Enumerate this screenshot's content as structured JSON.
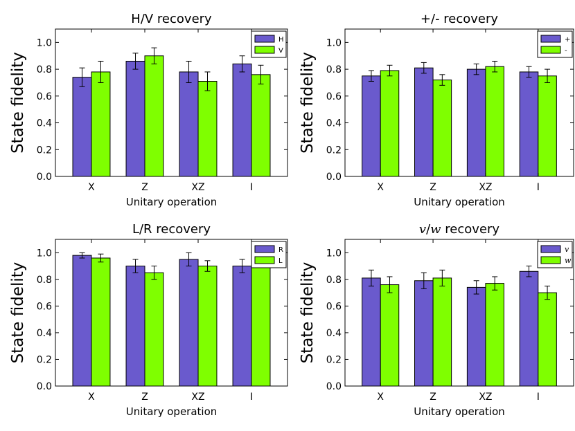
{
  "chart_data": [
    {
      "type": "bar",
      "title": "H/V recovery",
      "title_parts": [
        {
          "text": "H/V recovery",
          "italic": false
        }
      ],
      "xlabel": "Unitary operation",
      "ylabel": "State fidelity",
      "categories": [
        "X",
        "Z",
        "XZ",
        "I"
      ],
      "ylim": [
        0,
        1.1
      ],
      "yticks": [
        "0.0",
        "0.2",
        "0.4",
        "0.6",
        "0.8",
        "1.0"
      ],
      "legend_position": "top-right",
      "series": [
        {
          "name": "H",
          "italic": false,
          "color": "#6a5acd",
          "values": [
            0.74,
            0.86,
            0.78,
            0.84
          ],
          "errors": [
            0.07,
            0.06,
            0.08,
            0.06
          ]
        },
        {
          "name": "V",
          "italic": false,
          "color": "#7fff00",
          "values": [
            0.78,
            0.9,
            0.71,
            0.76
          ],
          "errors": [
            0.08,
            0.06,
            0.07,
            0.07
          ]
        }
      ]
    },
    {
      "type": "bar",
      "title": "+/- recovery",
      "title_parts": [
        {
          "text": "+/- recovery",
          "italic": false
        }
      ],
      "xlabel": "Unitary operation",
      "ylabel": "State fidelity",
      "categories": [
        "X",
        "Z",
        "XZ",
        "I"
      ],
      "ylim": [
        0,
        1.1
      ],
      "yticks": [
        "0.0",
        "0.2",
        "0.4",
        "0.6",
        "0.8",
        "1.0"
      ],
      "legend_position": "top-right",
      "series": [
        {
          "name": "+",
          "italic": false,
          "color": "#6a5acd",
          "values": [
            0.75,
            0.81,
            0.8,
            0.78
          ],
          "errors": [
            0.04,
            0.04,
            0.04,
            0.04
          ]
        },
        {
          "name": "-",
          "italic": false,
          "color": "#7fff00",
          "values": [
            0.79,
            0.72,
            0.82,
            0.75
          ],
          "errors": [
            0.04,
            0.04,
            0.04,
            0.05
          ]
        }
      ]
    },
    {
      "type": "bar",
      "title": "L/R recovery",
      "title_parts": [
        {
          "text": "L/R recovery",
          "italic": false
        }
      ],
      "xlabel": "Unitary operation",
      "ylabel": "State fidelity",
      "categories": [
        "X",
        "Z",
        "XZ",
        "I"
      ],
      "ylim": [
        0,
        1.1
      ],
      "yticks": [
        "0.0",
        "0.2",
        "0.4",
        "0.6",
        "0.8",
        "1.0"
      ],
      "legend_position": "top-right",
      "series": [
        {
          "name": "R",
          "italic": false,
          "color": "#6a5acd",
          "values": [
            0.98,
            0.9,
            0.95,
            0.9
          ],
          "errors": [
            0.02,
            0.05,
            0.05,
            0.05
          ]
        },
        {
          "name": "L",
          "italic": false,
          "color": "#7fff00",
          "values": [
            0.96,
            0.85,
            0.9,
            0.94
          ],
          "errors": [
            0.03,
            0.05,
            0.04,
            0.04
          ]
        }
      ]
    },
    {
      "type": "bar",
      "title": "v/w recovery",
      "title_parts": [
        {
          "text": "v",
          "italic": true
        },
        {
          "text": "/",
          "italic": false
        },
        {
          "text": "w",
          "italic": true
        },
        {
          "text": " recovery",
          "italic": false
        }
      ],
      "xlabel": "Unitary operation",
      "ylabel": "State fidelity",
      "categories": [
        "X",
        "Z",
        "XZ",
        "I"
      ],
      "ylim": [
        0,
        1.1
      ],
      "yticks": [
        "0.0",
        "0.2",
        "0.4",
        "0.6",
        "0.8",
        "1.0"
      ],
      "legend_position": "top-right",
      "series": [
        {
          "name": "v",
          "italic": true,
          "color": "#6a5acd",
          "values": [
            0.81,
            0.79,
            0.74,
            0.86
          ],
          "errors": [
            0.06,
            0.06,
            0.05,
            0.04
          ]
        },
        {
          "name": "w",
          "italic": true,
          "color": "#7fff00",
          "values": [
            0.76,
            0.81,
            0.77,
            0.7
          ],
          "errors": [
            0.06,
            0.06,
            0.05,
            0.05
          ]
        }
      ]
    }
  ]
}
